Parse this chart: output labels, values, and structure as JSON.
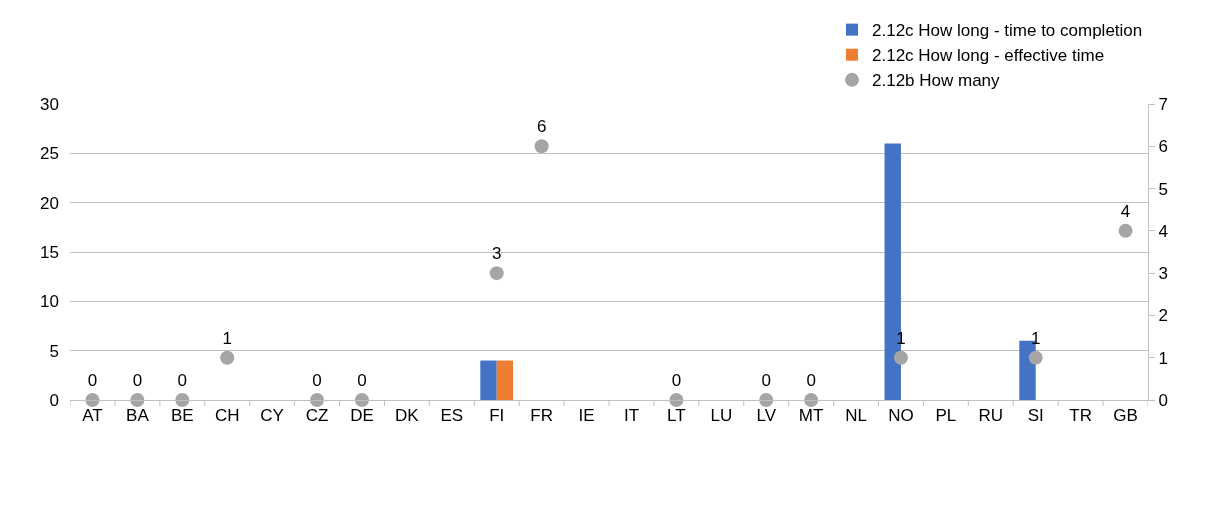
{
  "chart_data": {
    "type": "bar",
    "categories": [
      "AT",
      "BA",
      "BE",
      "CH",
      "CY",
      "CZ",
      "DE",
      "DK",
      "ES",
      "FI",
      "FR",
      "IE",
      "IT",
      "LT",
      "LU",
      "LV",
      "MT",
      "NL",
      "NO",
      "PL",
      "RU",
      "SI",
      "TR",
      "GB"
    ],
    "series": [
      {
        "name": "2.12c How long - time to completion",
        "color": "#4472c4",
        "values": [
          null,
          null,
          null,
          null,
          null,
          null,
          null,
          null,
          null,
          4,
          null,
          null,
          null,
          null,
          null,
          null,
          null,
          null,
          26,
          null,
          null,
          6,
          null,
          null
        ]
      },
      {
        "name": "2.12c How long - effective time",
        "color": "#ed7d31",
        "values": [
          null,
          null,
          null,
          null,
          null,
          null,
          null,
          null,
          null,
          4,
          null,
          null,
          null,
          null,
          null,
          null,
          null,
          null,
          null,
          null,
          null,
          null,
          null,
          null
        ]
      },
      {
        "name": "2.12b How many",
        "type": "scatter",
        "axis": "y2",
        "marker": "circle",
        "color": "#a5a5a5",
        "values": [
          0,
          0,
          0,
          1,
          null,
          0,
          0,
          null,
          null,
          3,
          6,
          null,
          null,
          0,
          null,
          0,
          0,
          null,
          1,
          null,
          null,
          1,
          null,
          4
        ],
        "value_labels": [
          "0",
          "0",
          "0",
          "1",
          null,
          "0",
          "0",
          null,
          null,
          "3",
          "6",
          null,
          null,
          "0",
          null,
          "0",
          "0",
          null,
          "1",
          null,
          null,
          "1",
          null,
          "4"
        ]
      }
    ],
    "ylim": [
      0,
      30
    ],
    "yticks": [
      0,
      5,
      10,
      15,
      20,
      25,
      30
    ],
    "y2lim": [
      0,
      7
    ],
    "y2ticks": [
      0,
      1,
      2,
      3,
      4,
      5,
      6,
      7
    ],
    "grid": "y",
    "legend": "top right"
  }
}
